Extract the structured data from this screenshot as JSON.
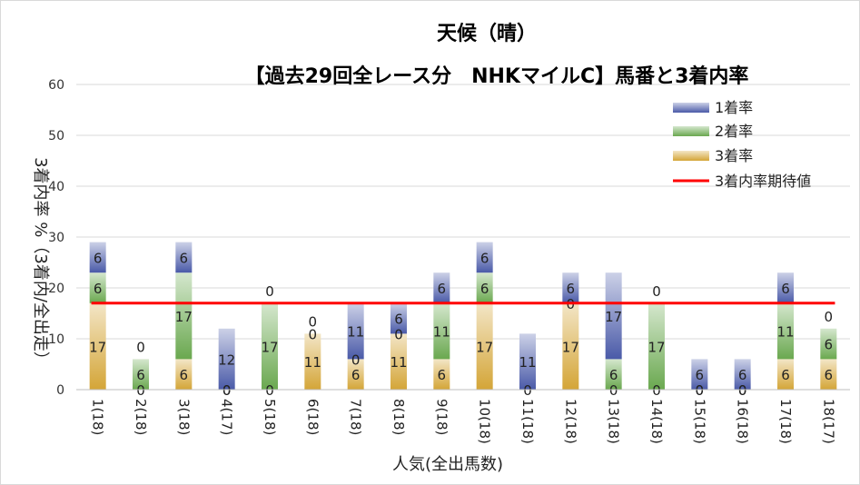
{
  "chart_data": {
    "type": "bar",
    "stacked": true,
    "title": "天候（晴）",
    "subtitle": "【過去29回全レース分　NHKマイルC】馬番と3着内率",
    "xlabel": "人気(全出馬数)",
    "ylabel": "3着内率 %（3着内/全出走）",
    "ylim": [
      0,
      60
    ],
    "yticks": [
      "0",
      "10",
      "20",
      "30",
      "40",
      "50",
      "60"
    ],
    "grid": true,
    "legend_position": "top-right",
    "categories": [
      "1(18)",
      "2(18)",
      "3(18)",
      "4(17)",
      "5(18)",
      "6(18)",
      "7(18)",
      "8(18)",
      "9(18)",
      "10(18)",
      "11(18)",
      "12(18)",
      "13(18)",
      "14(18)",
      "15(18)",
      "16(18)",
      "17(18)",
      "18(17)"
    ],
    "series": [
      {
        "name": "3着率",
        "color": "#d4a537",
        "values": [
          17,
          0,
          6,
          0,
          0,
          11,
          6,
          11,
          6,
          17,
          0,
          17,
          0,
          0,
          0,
          0,
          6,
          6
        ],
        "labels": [
          "17",
          "0",
          "6",
          "0",
          "0",
          "11",
          "6",
          "11",
          "6",
          "17",
          "0",
          "17",
          "0",
          "0",
          "0",
          "0",
          "6",
          "6"
        ]
      },
      {
        "name": "2着率",
        "color": "#6aa84f",
        "values": [
          6,
          6,
          17,
          0,
          17,
          0,
          0,
          0,
          11,
          6,
          0,
          0,
          6,
          17,
          0,
          0,
          11,
          6
        ],
        "labels": [
          "6",
          "6",
          "17",
          "0",
          "17",
          "0",
          "0",
          "0",
          "11",
          "6",
          "",
          "0",
          "6",
          "17",
          "0",
          "0",
          "11",
          "6"
        ]
      },
      {
        "name": "1着率",
        "color": "#4a5aa8",
        "values": [
          6,
          0,
          6,
          12,
          0,
          0,
          11,
          6,
          6,
          6,
          11,
          6,
          17,
          0,
          6,
          6,
          6,
          0
        ],
        "labels": [
          "6",
          "0",
          "6",
          "12",
          "0",
          "0",
          "11",
          "6",
          "6",
          "6",
          "11",
          "6",
          "17",
          "0",
          "6",
          "6",
          "6",
          "0"
        ]
      }
    ],
    "expected_line": {
      "name": "3着内率期待値",
      "color": "#ff0000",
      "value": 17
    }
  }
}
